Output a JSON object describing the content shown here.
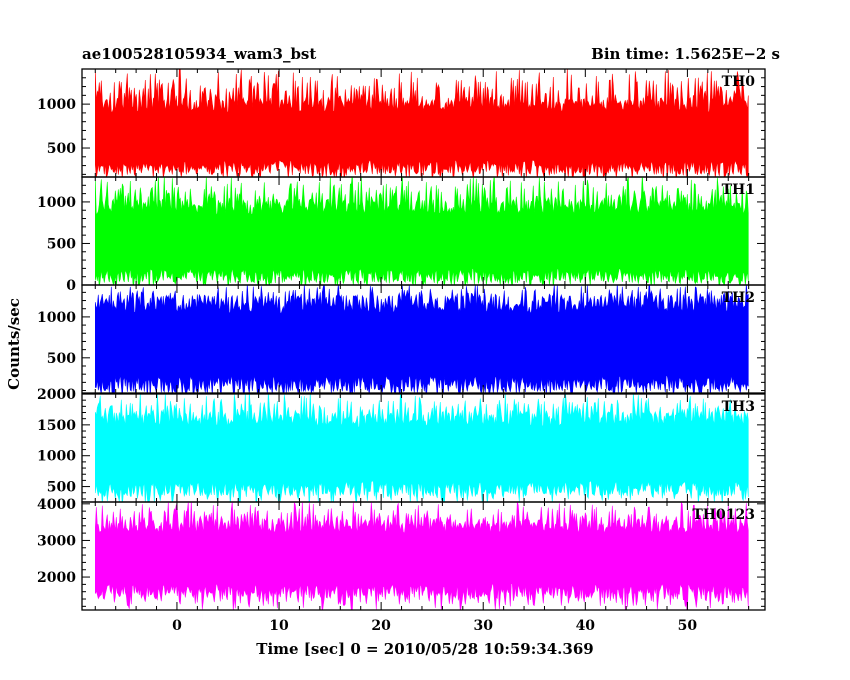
{
  "header": {
    "title_left": "ae100528105934_wam3_bst",
    "title_right": "Bin time: 1.5625E−2 s"
  },
  "axes": {
    "xlabel": "Time [sec] 0 = 2010/05/28 10:59:34.369",
    "ylabel": "Counts/sec"
  },
  "chart_data": {
    "type": "line",
    "title": "ae100528105934_wam3_bst",
    "subtitle": "Bin time: 1.5625E−2 s",
    "xlabel": "Time [sec] 0 = 2010/05/28 10:59:34.369",
    "ylabel": "Counts/sec",
    "xlim": [
      -9.3,
      57.6
    ],
    "xticks": [
      0,
      10,
      20,
      30,
      40,
      50
    ],
    "x_data_range": [
      -8.0,
      56.0
    ],
    "bin_time": 0.015625,
    "grid": false,
    "legend": "none",
    "panels": [
      {
        "name": "TH0",
        "color": "#ff0000",
        "ylim": [
          170,
          1400
        ],
        "yticks": [
          500,
          1000
        ],
        "typical_low": 270,
        "typical_high": 1000,
        "min": 160,
        "max": 1400
      },
      {
        "name": "TH1",
        "color": "#00ff00",
        "ylim": [
          0,
          1300
        ],
        "yticks": [
          0,
          500,
          1000
        ],
        "typical_low": 100,
        "typical_high": 950,
        "min": 0,
        "max": 1300
      },
      {
        "name": "TH2",
        "color": "#0000ff",
        "ylim": [
          70,
          1390
        ],
        "yticks": [
          500,
          1000
        ],
        "typical_low": 170,
        "typical_high": 1170,
        "min": 70,
        "max": 1390
      },
      {
        "name": "TH3",
        "color": "#00ffff",
        "ylim": [
          250,
          2000
        ],
        "yticks": [
          500,
          1000,
          1500,
          2000
        ],
        "typical_low": 450,
        "typical_high": 1600,
        "min": 250,
        "max": 2000
      },
      {
        "name": "TH0123",
        "color": "#ff00ff",
        "ylim": [
          1100,
          4050
        ],
        "yticks": [
          2000,
          3000,
          4000
        ],
        "typical_low": 1600,
        "typical_high": 3400,
        "min": 1100,
        "max": 4050
      }
    ]
  }
}
